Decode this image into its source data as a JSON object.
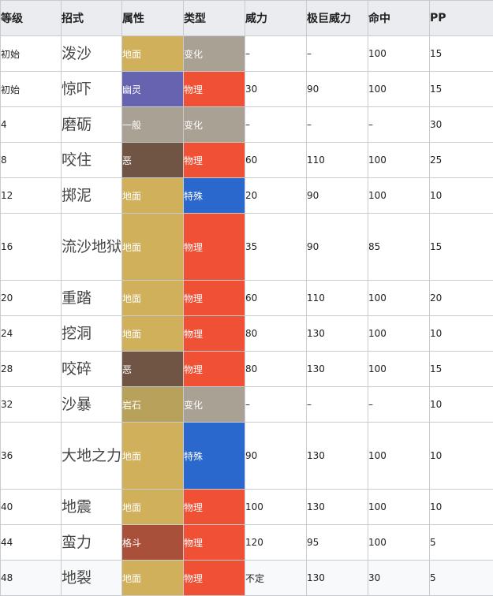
{
  "colors": {
    "header_bg": "#eaecf0",
    "border": "#c8ccd1",
    "地面": "#d0b05a",
    "幽灵": "#6663b1",
    "一般": "#aaa195",
    "恶": "#705545",
    "岩石": "#b8a15a",
    "格斗": "#a8503a",
    "物理": "#f05033",
    "特殊": "#2a68ce",
    "变化": "#aaa195"
  },
  "headers": [
    "等级",
    "招式",
    "属性",
    "类型",
    "威力",
    "极巨威力",
    "命中",
    "PP"
  ],
  "rows": [
    {
      "level": "初始",
      "name": "泼沙",
      "type": "地面",
      "category": "变化",
      "power": "–",
      "max_power": "–",
      "accuracy": "100",
      "pp": "15"
    },
    {
      "level": "初始",
      "name": "惊吓",
      "type": "幽灵",
      "category": "物理",
      "power": "30",
      "max_power": "90",
      "accuracy": "100",
      "pp": "15"
    },
    {
      "level": "4",
      "name": "磨砺",
      "type": "一般",
      "category": "变化",
      "power": "–",
      "max_power": "–",
      "accuracy": "–",
      "pp": "30"
    },
    {
      "level": "8",
      "name": "咬住",
      "type": "恶",
      "category": "物理",
      "power": "60",
      "max_power": "110",
      "accuracy": "100",
      "pp": "25"
    },
    {
      "level": "12",
      "name": "掷泥",
      "type": "地面",
      "category": "特殊",
      "power": "20",
      "max_power": "90",
      "accuracy": "100",
      "pp": "10"
    },
    {
      "level": "16",
      "name": "流沙地狱",
      "type": "地面",
      "category": "物理",
      "power": "35",
      "max_power": "90",
      "accuracy": "85",
      "pp": "15",
      "tall": true
    },
    {
      "level": "20",
      "name": "重踏",
      "type": "地面",
      "category": "物理",
      "power": "60",
      "max_power": "110",
      "accuracy": "100",
      "pp": "20"
    },
    {
      "level": "24",
      "name": "挖洞",
      "type": "地面",
      "category": "物理",
      "power": "80",
      "max_power": "130",
      "accuracy": "100",
      "pp": "10"
    },
    {
      "level": "28",
      "name": "咬碎",
      "type": "恶",
      "category": "物理",
      "power": "80",
      "max_power": "130",
      "accuracy": "100",
      "pp": "15"
    },
    {
      "level": "32",
      "name": "沙暴",
      "type": "岩石",
      "category": "变化",
      "power": "–",
      "max_power": "–",
      "accuracy": "–",
      "pp": "10"
    },
    {
      "level": "36",
      "name": "大地之力",
      "type": "地面",
      "category": "特殊",
      "power": "90",
      "max_power": "130",
      "accuracy": "100",
      "pp": "10",
      "tall": true
    },
    {
      "level": "40",
      "name": "地震",
      "type": "地面",
      "category": "物理",
      "power": "100",
      "max_power": "130",
      "accuracy": "100",
      "pp": "10"
    },
    {
      "level": "44",
      "name": "蛮力",
      "type": "格斗",
      "category": "物理",
      "power": "120",
      "max_power": "95",
      "accuracy": "100",
      "pp": "5"
    },
    {
      "level": "48",
      "name": "地裂",
      "type": "地面",
      "category": "物理",
      "power": "不定",
      "max_power": "130",
      "accuracy": "30",
      "pp": "5"
    }
  ]
}
